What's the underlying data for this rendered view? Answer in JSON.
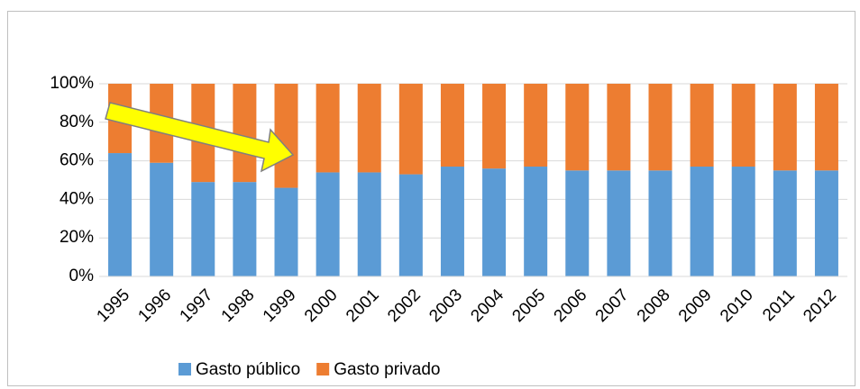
{
  "chart_data": {
    "type": "stacked_bar",
    "categories": [
      "1995",
      "1996",
      "1997",
      "1998",
      "1999",
      "2000",
      "2001",
      "2002",
      "2003",
      "2004",
      "2005",
      "2006",
      "2007",
      "2008",
      "2009",
      "2010",
      "2011",
      "2012"
    ],
    "series": [
      {
        "name": "Gasto público",
        "color": "#5b9bd5",
        "values": [
          64,
          59,
          49,
          49,
          46,
          54,
          54,
          53,
          57,
          56,
          57,
          55,
          55,
          55,
          57,
          57,
          55,
          55
        ]
      },
      {
        "name": "Gasto privado",
        "color": "#ed7d31",
        "values": [
          36,
          41,
          51,
          51,
          54,
          46,
          46,
          47,
          43,
          44,
          43,
          45,
          45,
          45,
          43,
          43,
          45,
          45
        ]
      }
    ],
    "ylim": [
      0,
      100
    ],
    "yticks": [
      {
        "value": 0,
        "label": "0%"
      },
      {
        "value": 20,
        "label": "20%"
      },
      {
        "value": 40,
        "label": "40%"
      },
      {
        "value": 60,
        "label": "60%"
      },
      {
        "value": 80,
        "label": "80%"
      },
      {
        "value": 100,
        "label": "100%"
      }
    ],
    "grid": true,
    "legend": "bottom"
  }
}
